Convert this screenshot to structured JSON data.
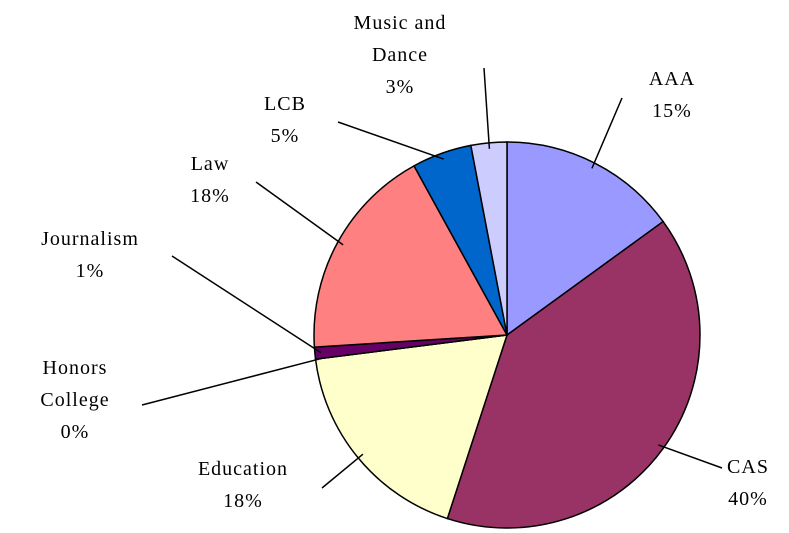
{
  "chart_data": {
    "type": "pie",
    "categories": [
      "AAA",
      "CAS",
      "Education",
      "Honors College",
      "Journalism",
      "Law",
      "LCB",
      "Music and Dance"
    ],
    "values": [
      15,
      40,
      18,
      0,
      1,
      18,
      5,
      3
    ],
    "value_labels": [
      "15%",
      "40%",
      "18%",
      "0%",
      "1%",
      "18%",
      "5%",
      "3%"
    ],
    "colors": [
      "#9999ff",
      "#993366",
      "#ffffcc",
      "#ccffff",
      "#660066",
      "#ff8080",
      "#0066cc",
      "#ccccff"
    ]
  }
}
